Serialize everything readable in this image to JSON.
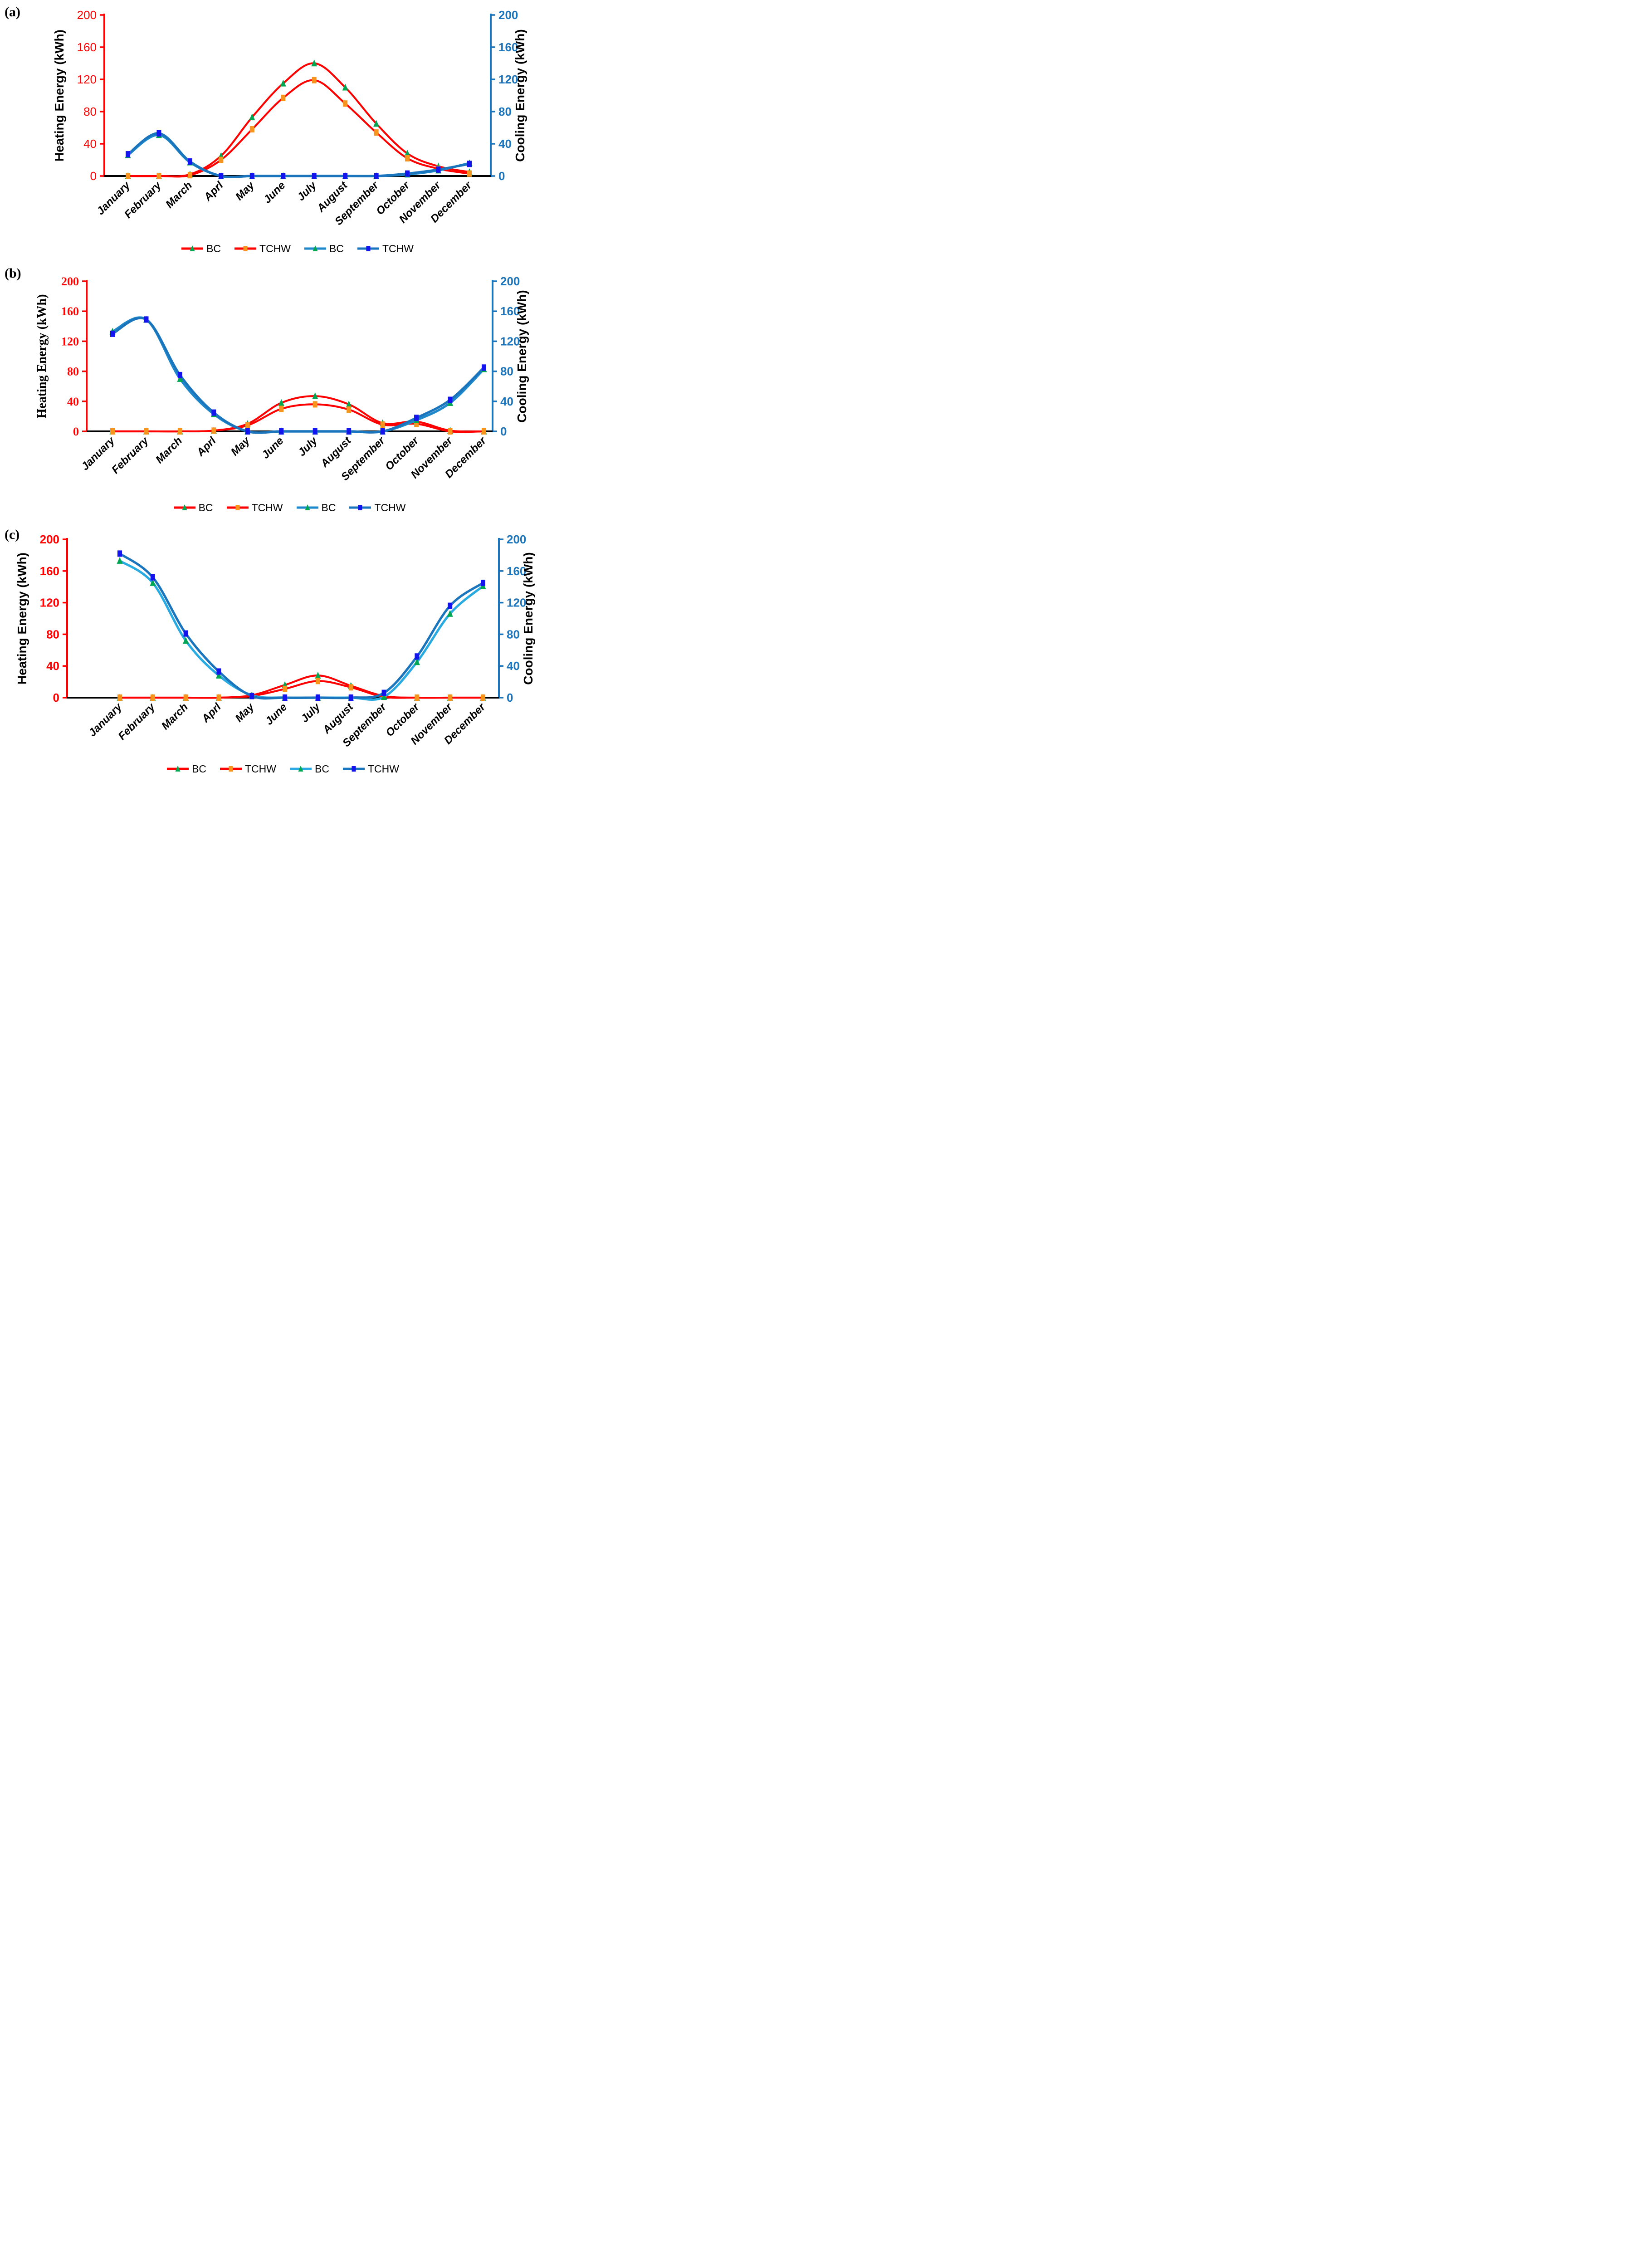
{
  "page": {
    "background": "#ffffff"
  },
  "axis_colors": {
    "heating": "#FF0000",
    "cooling": "#1B75BC"
  },
  "chart_data": [
    {
      "panel_label": "(a)",
      "type": "line",
      "ylabel_left": "Heating Energy (kWh)",
      "ylabel_right": "Cooling Energy (kWh)",
      "ylim": [
        0,
        200
      ],
      "y_ticks": [
        0,
        40,
        80,
        120,
        160,
        200
      ],
      "legend_position": "bottom",
      "grid": false,
      "categories": [
        "January",
        "February",
        "March",
        "Aprl",
        "May",
        "June",
        "July",
        "August",
        "September",
        "October",
        "November",
        "December"
      ],
      "series": [
        {
          "name": "BC",
          "axis": "heating",
          "color": "#FF0000",
          "marker": "triangle",
          "marker_color": "#00A651",
          "values": [
            0,
            0,
            2,
            25,
            73,
            115,
            140,
            110,
            65,
            28,
            12,
            5
          ]
        },
        {
          "name": "TCHW",
          "axis": "heating",
          "color": "#FF0000",
          "marker": "square",
          "marker_color": "#F7941E",
          "values": [
            0,
            0,
            1,
            20,
            58,
            97,
            119,
            90,
            54,
            22,
            9,
            3
          ]
        },
        {
          "name": "BC",
          "axis": "cooling",
          "color": "#1E88CB",
          "marker": "triangle",
          "marker_color": "#00A651",
          "values": [
            26,
            51,
            17,
            0,
            0,
            0,
            0,
            0,
            0,
            2,
            7,
            16
          ]
        },
        {
          "name": "TCHW",
          "axis": "cooling",
          "color": "#1B75BC",
          "marker": "square",
          "marker_color": "#1414EF",
          "values": [
            27,
            53,
            18,
            0,
            0,
            0,
            0,
            0,
            0,
            3,
            8,
            15
          ]
        }
      ]
    },
    {
      "panel_label": "(b)",
      "type": "line",
      "ylabel_left": "Heating Energy (kWh)",
      "ylabel_right": "Cooling Energy (kWh)",
      "ylim": [
        0,
        200
      ],
      "y_ticks": [
        0,
        40,
        80,
        120,
        160,
        200
      ],
      "legend_position": "bottom",
      "grid": false,
      "categories": [
        "January",
        "February",
        "March",
        "Aprl",
        "May",
        "June",
        "July",
        "August",
        "September",
        "October",
        "November",
        "December"
      ],
      "series": [
        {
          "name": "BC",
          "axis": "heating",
          "color": "#FF0000",
          "marker": "triangle",
          "marker_color": "#00A651",
          "values": [
            0,
            0,
            0,
            1,
            10,
            38,
            47,
            36,
            11,
            13,
            1,
            0
          ]
        },
        {
          "name": "TCHW",
          "axis": "heating",
          "color": "#FF0000",
          "marker": "square",
          "marker_color": "#F7941E",
          "values": [
            0,
            0,
            0,
            1,
            8,
            30,
            36,
            29,
            9,
            10,
            0,
            0
          ]
        },
        {
          "name": "BC",
          "axis": "cooling",
          "color": "#1E88CB",
          "marker": "triangle",
          "marker_color": "#00A651",
          "values": [
            133,
            149,
            70,
            23,
            0,
            0,
            0,
            0,
            0,
            15,
            38,
            83
          ]
        },
        {
          "name": "TCHW",
          "axis": "cooling",
          "color": "#1B75BC",
          "marker": "square",
          "marker_color": "#1414EF",
          "values": [
            130,
            149,
            75,
            25,
            0,
            0,
            0,
            0,
            0,
            18,
            42,
            85
          ]
        }
      ]
    },
    {
      "panel_label": "(c)",
      "type": "line",
      "ylabel_left": "Heating Energy (kWh)",
      "ylabel_right": "Cooling Energy (kWh)",
      "ylim": [
        0,
        200
      ],
      "y_ticks": [
        0,
        40,
        80,
        120,
        160,
        200
      ],
      "legend_position": "bottom",
      "grid": false,
      "categories": [
        "January",
        "February",
        "March",
        "Aprl",
        "May",
        "June",
        "July",
        "August",
        "September",
        "October",
        "November",
        "December"
      ],
      "series": [
        {
          "name": "BC",
          "axis": "heating",
          "color": "#FF0000",
          "marker": "triangle",
          "marker_color": "#00A651",
          "values": [
            0,
            0,
            0,
            0,
            3,
            16,
            28,
            15,
            2,
            0,
            0,
            0
          ]
        },
        {
          "name": "TCHW",
          "axis": "heating",
          "color": "#FF0000",
          "marker": "square",
          "marker_color": "#F7941E",
          "values": [
            0,
            0,
            0,
            0,
            2,
            11,
            21,
            13,
            1,
            0,
            0,
            0
          ]
        },
        {
          "name": "BC",
          "axis": "cooling",
          "color": "#29ABE2",
          "marker": "triangle",
          "marker_color": "#00A651",
          "values": [
            173,
            145,
            72,
            28,
            3,
            0,
            0,
            0,
            1,
            45,
            106,
            141
          ]
        },
        {
          "name": "TCHW",
          "axis": "cooling",
          "color": "#1B75BC",
          "marker": "square",
          "marker_color": "#1414EF",
          "values": [
            182,
            152,
            81,
            33,
            2,
            0,
            0,
            0,
            6,
            52,
            116,
            145
          ]
        }
      ]
    }
  ]
}
